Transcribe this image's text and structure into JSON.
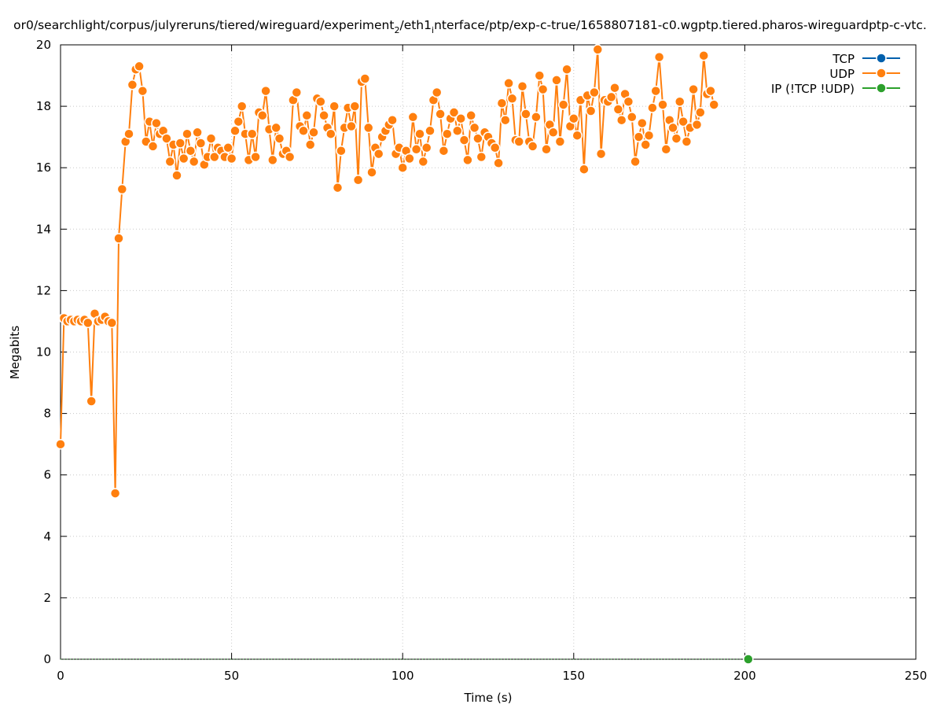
{
  "chart_data": {
    "type": "line",
    "title": "or0/searchlight/corpus/julyreruns/tiered/wireguard/experiment",
    "title_sub1": "2",
    "title_mid": "/eth1",
    "title_sub2": "i",
    "title_rest": "nterface/ptp/exp-c-true/1658807181-c0.wgptp.tiered.pharos-wireguardptp-c-vtc.",
    "xlabel": "Time (s)",
    "ylabel": "Megabits",
    "xlim": [
      0,
      250
    ],
    "ylim": [
      0,
      20
    ],
    "xticks": [
      "0",
      "50",
      "100",
      "150",
      "200",
      "250"
    ],
    "yticks": [
      "0",
      "2",
      "4",
      "6",
      "8",
      "10",
      "12",
      "14",
      "16",
      "18",
      "20"
    ],
    "grid": true,
    "legend_position": "top-right",
    "series": [
      {
        "name": "TCP",
        "color": "#0060ad",
        "points": []
      },
      {
        "name": "UDP",
        "color": "#ff7f0e",
        "points": [
          [
            0,
            7.0
          ],
          [
            1,
            11.1
          ],
          [
            2,
            11.0
          ],
          [
            3,
            11.05
          ],
          [
            4,
            11.0
          ],
          [
            5,
            11.05
          ],
          [
            6,
            11.0
          ],
          [
            7,
            11.05
          ],
          [
            8,
            10.95
          ],
          [
            9,
            8.4
          ],
          [
            10,
            11.25
          ],
          [
            11,
            11.0
          ],
          [
            12,
            11.05
          ],
          [
            13,
            11.15
          ],
          [
            14,
            11.0
          ],
          [
            15,
            10.95
          ],
          [
            16,
            5.4
          ],
          [
            17,
            13.7
          ],
          [
            18,
            15.3
          ],
          [
            19,
            16.85
          ],
          [
            20,
            17.1
          ],
          [
            21,
            18.7
          ],
          [
            22,
            19.2
          ],
          [
            23,
            19.3
          ],
          [
            24,
            18.5
          ],
          [
            25,
            16.85
          ],
          [
            26,
            17.5
          ],
          [
            27,
            16.7
          ],
          [
            28,
            17.45
          ],
          [
            29,
            17.1
          ],
          [
            30,
            17.2
          ],
          [
            31,
            16.95
          ],
          [
            32,
            16.2
          ],
          [
            33,
            16.75
          ],
          [
            34,
            15.75
          ],
          [
            35,
            16.8
          ],
          [
            36,
            16.3
          ],
          [
            37,
            17.1
          ],
          [
            38,
            16.55
          ],
          [
            39,
            16.2
          ],
          [
            40,
            17.15
          ],
          [
            41,
            16.8
          ],
          [
            42,
            16.1
          ],
          [
            43,
            16.35
          ],
          [
            44,
            16.95
          ],
          [
            45,
            16.35
          ],
          [
            46,
            16.65
          ],
          [
            47,
            16.55
          ],
          [
            48,
            16.35
          ],
          [
            49,
            16.65
          ],
          [
            50,
            16.3
          ],
          [
            51,
            17.2
          ],
          [
            52,
            17.5
          ],
          [
            53,
            18.0
          ],
          [
            54,
            17.1
          ],
          [
            55,
            16.25
          ],
          [
            56,
            17.1
          ],
          [
            57,
            16.35
          ],
          [
            58,
            17.8
          ],
          [
            59,
            17.7
          ],
          [
            60,
            18.5
          ],
          [
            61,
            17.25
          ],
          [
            62,
            16.25
          ],
          [
            63,
            17.3
          ],
          [
            64,
            16.95
          ],
          [
            65,
            16.45
          ],
          [
            66,
            16.55
          ],
          [
            67,
            16.35
          ],
          [
            68,
            18.2
          ],
          [
            69,
            18.45
          ],
          [
            70,
            17.35
          ],
          [
            71,
            17.2
          ],
          [
            72,
            17.7
          ],
          [
            73,
            16.75
          ],
          [
            74,
            17.15
          ],
          [
            75,
            18.25
          ],
          [
            76,
            18.15
          ],
          [
            77,
            17.7
          ],
          [
            78,
            17.3
          ],
          [
            79,
            17.1
          ],
          [
            80,
            18.0
          ],
          [
            81,
            15.35
          ],
          [
            82,
            16.55
          ],
          [
            83,
            17.3
          ],
          [
            84,
            17.95
          ],
          [
            85,
            17.35
          ],
          [
            86,
            18.0
          ],
          [
            87,
            15.6
          ],
          [
            88,
            18.8
          ],
          [
            89,
            18.9
          ],
          [
            90,
            17.3
          ],
          [
            91,
            15.85
          ],
          [
            92,
            16.65
          ],
          [
            93,
            16.45
          ],
          [
            94,
            17.0
          ],
          [
            95,
            17.2
          ],
          [
            96,
            17.4
          ],
          [
            97,
            17.55
          ],
          [
            98,
            16.45
          ],
          [
            99,
            16.65
          ],
          [
            100,
            16.0
          ],
          [
            101,
            16.55
          ],
          [
            102,
            16.3
          ],
          [
            103,
            17.65
          ],
          [
            104,
            16.6
          ],
          [
            105,
            17.1
          ],
          [
            106,
            16.2
          ],
          [
            107,
            16.65
          ],
          [
            108,
            17.2
          ],
          [
            109,
            18.2
          ],
          [
            110,
            18.45
          ],
          [
            111,
            17.75
          ],
          [
            112,
            16.55
          ],
          [
            113,
            17.1
          ],
          [
            114,
            17.6
          ],
          [
            115,
            17.8
          ],
          [
            116,
            17.2
          ],
          [
            117,
            17.6
          ],
          [
            118,
            16.9
          ],
          [
            119,
            16.25
          ],
          [
            120,
            17.7
          ],
          [
            121,
            17.3
          ],
          [
            122,
            16.95
          ],
          [
            123,
            16.35
          ],
          [
            124,
            17.15
          ],
          [
            125,
            17.0
          ],
          [
            126,
            16.8
          ],
          [
            127,
            16.65
          ],
          [
            128,
            16.15
          ],
          [
            129,
            18.1
          ],
          [
            130,
            17.55
          ],
          [
            131,
            18.75
          ],
          [
            132,
            18.25
          ],
          [
            133,
            16.9
          ],
          [
            134,
            16.85
          ],
          [
            135,
            18.65
          ],
          [
            136,
            17.75
          ],
          [
            137,
            16.85
          ],
          [
            138,
            16.7
          ],
          [
            139,
            17.65
          ],
          [
            140,
            19.0
          ],
          [
            141,
            18.55
          ],
          [
            142,
            16.6
          ],
          [
            143,
            17.4
          ],
          [
            144,
            17.15
          ],
          [
            145,
            18.85
          ],
          [
            146,
            16.85
          ],
          [
            147,
            18.05
          ],
          [
            148,
            19.2
          ],
          [
            149,
            17.35
          ],
          [
            150,
            17.6
          ],
          [
            151,
            17.05
          ],
          [
            152,
            18.2
          ],
          [
            153,
            15.95
          ],
          [
            154,
            18.35
          ],
          [
            155,
            17.85
          ],
          [
            156,
            18.45
          ],
          [
            157,
            19.85
          ],
          [
            158,
            16.45
          ],
          [
            159,
            18.2
          ],
          [
            160,
            18.15
          ],
          [
            161,
            18.3
          ],
          [
            162,
            18.6
          ],
          [
            163,
            17.9
          ],
          [
            164,
            17.55
          ],
          [
            165,
            18.4
          ],
          [
            166,
            18.15
          ],
          [
            167,
            17.65
          ],
          [
            168,
            16.2
          ],
          [
            169,
            17.0
          ],
          [
            170,
            17.45
          ],
          [
            171,
            16.75
          ],
          [
            172,
            17.05
          ],
          [
            173,
            17.95
          ],
          [
            174,
            18.5
          ],
          [
            175,
            19.6
          ],
          [
            176,
            18.05
          ],
          [
            177,
            16.6
          ],
          [
            178,
            17.55
          ],
          [
            179,
            17.3
          ],
          [
            180,
            16.95
          ],
          [
            181,
            18.15
          ],
          [
            182,
            17.5
          ],
          [
            183,
            16.85
          ],
          [
            184,
            17.3
          ],
          [
            185,
            18.55
          ],
          [
            186,
            17.4
          ],
          [
            187,
            17.8
          ],
          [
            188,
            19.65
          ],
          [
            189,
            18.4
          ],
          [
            190,
            18.5
          ],
          [
            191,
            18.05
          ]
        ]
      },
      {
        "name": "IP (!TCP  !UDP)",
        "color": "#2ca02c",
        "points": [
          [
            201,
            0
          ]
        ]
      }
    ]
  }
}
